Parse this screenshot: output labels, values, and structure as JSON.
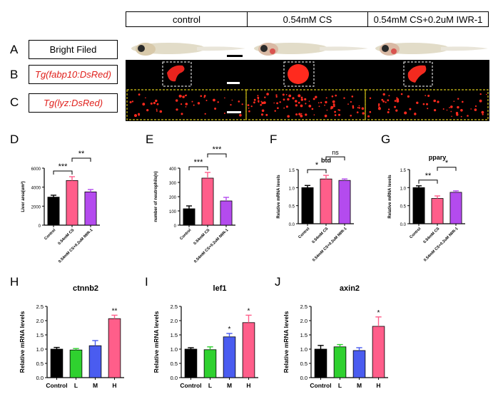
{
  "header": {
    "col1": "control",
    "col2": "0.54mM CS",
    "col3": "0.54mM CS+0.2uM IWR-1"
  },
  "rows": [
    {
      "letter": "A",
      "label": "Bright Filed"
    },
    {
      "letter": "B",
      "label": "Tg(fabp10:DsRed)"
    },
    {
      "letter": "C",
      "label": "Tg(lyz:DsRed)"
    }
  ],
  "colors": {
    "control": "#000000",
    "cs": "#ff5e8a",
    "iwr": "#b44bee",
    "m": "#4a5cf0",
    "h": "#ff5e8a",
    "l": "#2fd12f",
    "label_red": "#e0201c"
  },
  "chart_data": [
    {
      "id": "D",
      "type": "bar",
      "title": "",
      "ylabel": "Liver area(um²)",
      "ylim": [
        0,
        6000
      ],
      "yticks": [
        "0",
        "2000",
        "4000",
        "6000"
      ],
      "categories": [
        "Control",
        "0.54mM CS",
        "0.54mM CS+0.2uM IWR-1"
      ],
      "values": [
        2950,
        4700,
        3500
      ],
      "errors": [
        200,
        400,
        250
      ],
      "sig": [
        {
          "label": "***"
        },
        {
          "label": "**"
        }
      ]
    },
    {
      "id": "E",
      "type": "bar",
      "title": "",
      "ylabel": "number of neutrophils(n)",
      "ylim": [
        0,
        400
      ],
      "yticks": [
        "0",
        "100",
        "200",
        "300",
        "400"
      ],
      "categories": [
        "Control",
        "0.54mM CS",
        "0.54mM CS+0.2uM IWR-1"
      ],
      "values": [
        115,
        330,
        170
      ],
      "errors": [
        20,
        40,
        25
      ],
      "sig": [
        {
          "label": "***"
        },
        {
          "label": "***"
        }
      ]
    },
    {
      "id": "F",
      "type": "bar",
      "title": "btd",
      "ylabel": "Relative mRNA levels",
      "ylim": [
        0,
        1.5
      ],
      "yticks": [
        "0.0",
        "0.5",
        "1.0",
        "1.5"
      ],
      "categories": [
        "Control",
        "0.54mM CS",
        "0.54mM CS+0.2uM IWR-1"
      ],
      "values": [
        1.0,
        1.24,
        1.2
      ],
      "errors": [
        0.06,
        0.1,
        0.04
      ],
      "sig": [
        {
          "label": "*"
        },
        {
          "label": "ns"
        }
      ]
    },
    {
      "id": "G",
      "type": "bar",
      "title": "ppary",
      "ylabel": "Relative mRNA levels",
      "ylim": [
        0,
        1.5
      ],
      "yticks": [
        "0.0",
        "0.5",
        "1.0",
        "1.5"
      ],
      "categories": [
        "Control",
        "0.54mM CS",
        "0.54mM CS+0.2uM IWR-1"
      ],
      "values": [
        1.0,
        0.7,
        0.87
      ],
      "errors": [
        0.05,
        0.07,
        0.04
      ],
      "sig": [
        {
          "label": "**"
        },
        {
          "label": "*"
        }
      ]
    },
    {
      "id": "H",
      "type": "bar",
      "title": "ctnnb2",
      "ylabel": "Relative mRNA levels",
      "ylim": [
        0,
        2.5
      ],
      "yticks": [
        "0.0",
        "0.5",
        "1.0",
        "1.5",
        "2.0",
        "2.5"
      ],
      "categories": [
        "Control",
        "L",
        "M",
        "H"
      ],
      "values": [
        1.0,
        0.97,
        1.12,
        2.07
      ],
      "errors": [
        0.06,
        0.05,
        0.18,
        0.12
      ],
      "stars": [
        "",
        "",
        "",
        "**"
      ]
    },
    {
      "id": "I",
      "type": "bar",
      "title": "lef1",
      "ylabel": "Relative mRNA levels",
      "ylim": [
        0,
        2.5
      ],
      "yticks": [
        "0.0",
        "0.5",
        "1.0",
        "1.5",
        "2.0",
        "2.5"
      ],
      "categories": [
        "Control",
        "L",
        "M",
        "H"
      ],
      "values": [
        1.0,
        0.98,
        1.43,
        1.93
      ],
      "errors": [
        0.05,
        0.1,
        0.12,
        0.26
      ],
      "stars": [
        "",
        "",
        "*",
        "*"
      ]
    },
    {
      "id": "J",
      "type": "bar",
      "title": "axin2",
      "ylabel": "Relative mRNA levels",
      "ylim": [
        0,
        2.5
      ],
      "yticks": [
        "0.0",
        "0.5",
        "1.0",
        "1.5",
        "2.0",
        "2.5"
      ],
      "categories": [
        "Control",
        "L",
        "M",
        "H"
      ],
      "values": [
        1.0,
        1.08,
        0.95,
        1.8
      ],
      "errors": [
        0.13,
        0.08,
        0.1,
        0.33
      ],
      "stars": [
        "",
        "",
        "",
        "*"
      ]
    }
  ]
}
